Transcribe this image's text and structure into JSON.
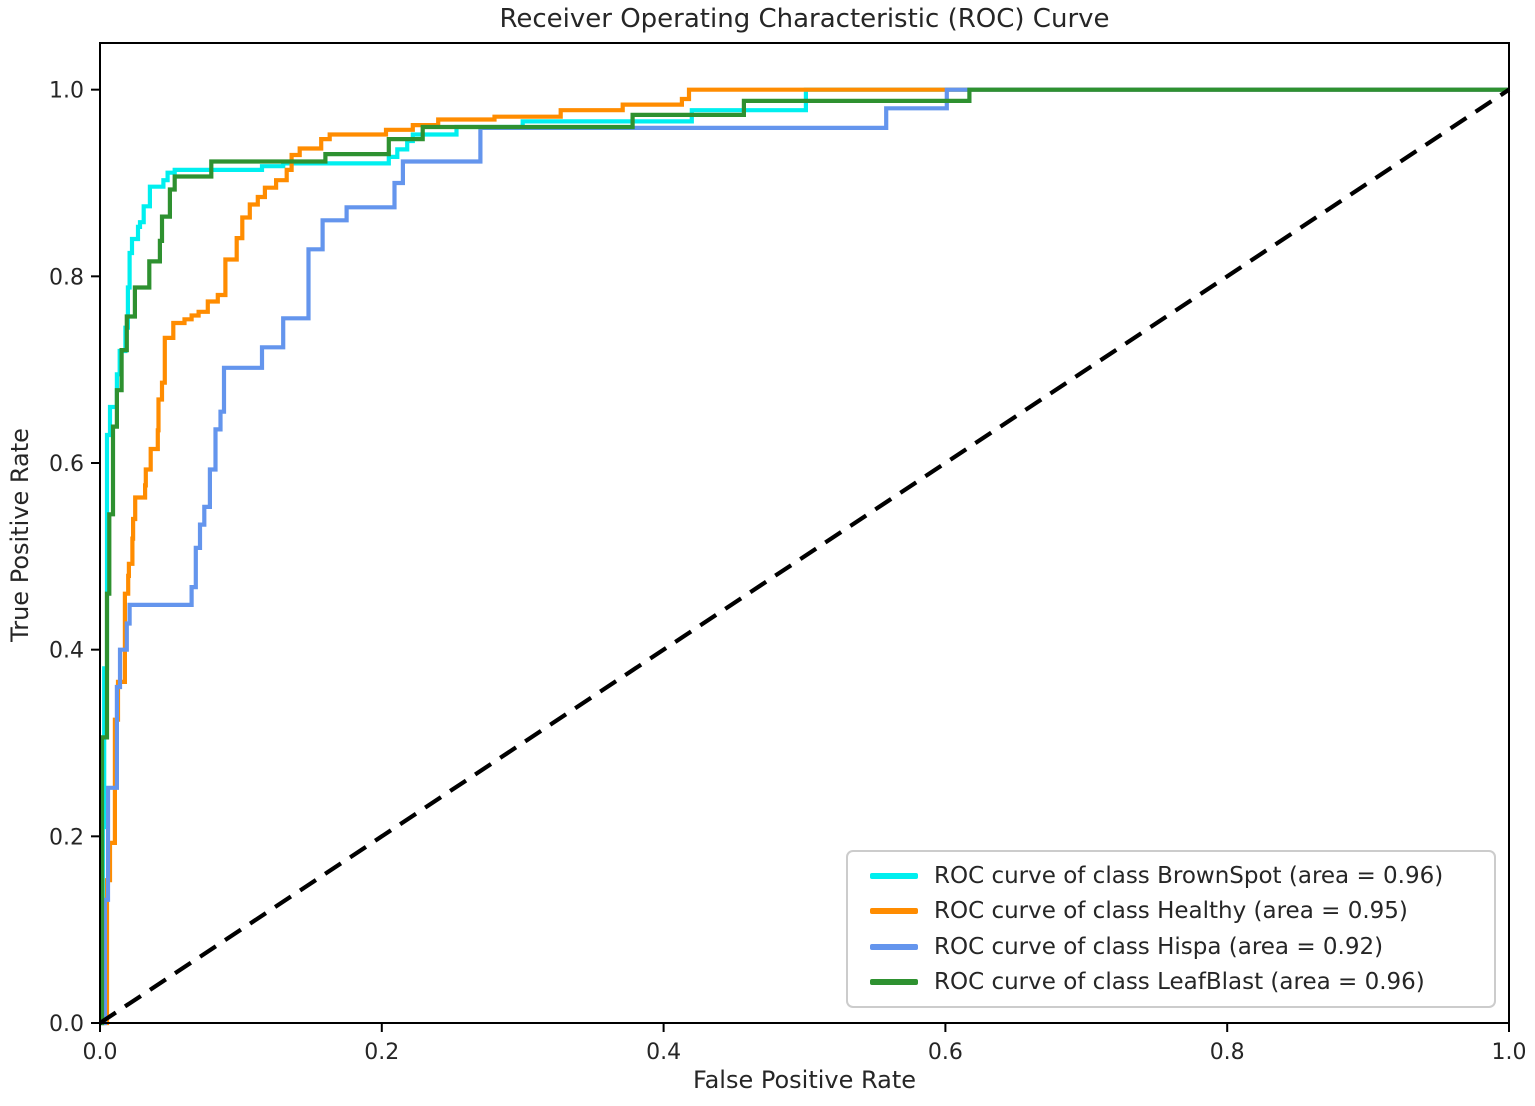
{
  "chart_data": {
    "type": "line",
    "subtype": "roc-step-curves",
    "title": "Receiver Operating Characteristic (ROC) Curve",
    "xlabel": "False Positive Rate",
    "ylabel": "True Positive Rate",
    "xlim": [
      0.0,
      1.0
    ],
    "ylim": [
      0.0,
      1.05
    ],
    "grid": false,
    "legend_position": "lower right",
    "x_ticks": [
      0.0,
      0.2,
      0.4,
      0.6,
      0.8,
      1.0
    ],
    "y_ticks": [
      0.0,
      0.2,
      0.4,
      0.6,
      0.8,
      1.0
    ],
    "x_tick_labels": [
      "0.0",
      "0.2",
      "0.4",
      "0.6",
      "0.8",
      "1.0"
    ],
    "y_tick_labels": [
      "0.0",
      "0.2",
      "0.4",
      "0.6",
      "0.8",
      "1.0"
    ],
    "series": [
      {
        "name": "BrownSpot",
        "auc": 0.96,
        "color": "#00EFEF",
        "points": [
          [
            0,
            0
          ],
          [
            0.002,
            0
          ],
          [
            0.002,
            0.21
          ],
          [
            0.003,
            0.21
          ],
          [
            0.003,
            0.38
          ],
          [
            0.005,
            0.38
          ],
          [
            0.005,
            0.63
          ],
          [
            0.0071,
            0.63
          ],
          [
            0.0071,
            0.66
          ],
          [
            0.012,
            0.66
          ],
          [
            0.012,
            0.695
          ],
          [
            0.014,
            0.695
          ],
          [
            0.014,
            0.72
          ],
          [
            0.018,
            0.72
          ],
          [
            0.018,
            0.745
          ],
          [
            0.0198,
            0.745
          ],
          [
            0.0198,
            0.788
          ],
          [
            0.021,
            0.788
          ],
          [
            0.021,
            0.825
          ],
          [
            0.0227,
            0.825
          ],
          [
            0.0227,
            0.84
          ],
          [
            0.027,
            0.84
          ],
          [
            0.027,
            0.853
          ],
          [
            0.0284,
            0.853
          ],
          [
            0.0284,
            0.858
          ],
          [
            0.031,
            0.858
          ],
          [
            0.031,
            0.875
          ],
          [
            0.0354,
            0.875
          ],
          [
            0.0354,
            0.896
          ],
          [
            0.045,
            0.896
          ],
          [
            0.045,
            0.903
          ],
          [
            0.048,
            0.903
          ],
          [
            0.048,
            0.911
          ],
          [
            0.053,
            0.911
          ],
          [
            0.053,
            0.914
          ],
          [
            0.115,
            0.914
          ],
          [
            0.115,
            0.918
          ],
          [
            0.13,
            0.918
          ],
          [
            0.13,
            0.921
          ],
          [
            0.205,
            0.921
          ],
          [
            0.205,
            0.928
          ],
          [
            0.211,
            0.928
          ],
          [
            0.211,
            0.936
          ],
          [
            0.218,
            0.936
          ],
          [
            0.218,
            0.945
          ],
          [
            0.222,
            0.945
          ],
          [
            0.222,
            0.952
          ],
          [
            0.253,
            0.952
          ],
          [
            0.253,
            0.96
          ],
          [
            0.3,
            0.96
          ],
          [
            0.3,
            0.966
          ],
          [
            0.42,
            0.966
          ],
          [
            0.42,
            0.978
          ],
          [
            0.501,
            0.978
          ],
          [
            0.501,
            1.0
          ],
          [
            1,
            1
          ]
        ]
      },
      {
        "name": "Healthy",
        "auc": 0.95,
        "color": "#FF8C00",
        "points": [
          [
            0,
            0
          ],
          [
            0.005,
            0
          ],
          [
            0.005,
            0.153
          ],
          [
            0.0071,
            0.153
          ],
          [
            0.0071,
            0.193
          ],
          [
            0.0106,
            0.193
          ],
          [
            0.0106,
            0.325
          ],
          [
            0.0128,
            0.325
          ],
          [
            0.0128,
            0.3655
          ],
          [
            0.0177,
            0.3655
          ],
          [
            0.0177,
            0.46
          ],
          [
            0.02,
            0.46
          ],
          [
            0.02,
            0.479
          ],
          [
            0.0205,
            0.479
          ],
          [
            0.0205,
            0.492
          ],
          [
            0.023,
            0.492
          ],
          [
            0.023,
            0.519
          ],
          [
            0.0235,
            0.519
          ],
          [
            0.0235,
            0.54
          ],
          [
            0.025,
            0.54
          ],
          [
            0.025,
            0.563
          ],
          [
            0.032,
            0.563
          ],
          [
            0.032,
            0.576
          ],
          [
            0.0325,
            0.576
          ],
          [
            0.0325,
            0.593
          ],
          [
            0.036,
            0.593
          ],
          [
            0.036,
            0.615
          ],
          [
            0.041,
            0.615
          ],
          [
            0.041,
            0.635
          ],
          [
            0.0415,
            0.635
          ],
          [
            0.0415,
            0.668
          ],
          [
            0.044,
            0.668
          ],
          [
            0.044,
            0.686
          ],
          [
            0.046,
            0.686
          ],
          [
            0.046,
            0.734
          ],
          [
            0.052,
            0.734
          ],
          [
            0.052,
            0.75
          ],
          [
            0.06,
            0.75
          ],
          [
            0.06,
            0.754
          ],
          [
            0.065,
            0.754
          ],
          [
            0.065,
            0.758
          ],
          [
            0.07,
            0.758
          ],
          [
            0.07,
            0.762
          ],
          [
            0.0765,
            0.762
          ],
          [
            0.0765,
            0.773
          ],
          [
            0.0836,
            0.773
          ],
          [
            0.0836,
            0.78
          ],
          [
            0.089,
            0.78
          ],
          [
            0.089,
            0.818
          ],
          [
            0.097,
            0.818
          ],
          [
            0.097,
            0.841
          ],
          [
            0.101,
            0.841
          ],
          [
            0.101,
            0.863
          ],
          [
            0.1063,
            0.863
          ],
          [
            0.1063,
            0.877
          ],
          [
            0.112,
            0.877
          ],
          [
            0.112,
            0.885
          ],
          [
            0.117,
            0.885
          ],
          [
            0.117,
            0.895
          ],
          [
            0.125,
            0.895
          ],
          [
            0.125,
            0.903
          ],
          [
            0.1325,
            0.903
          ],
          [
            0.1325,
            0.914
          ],
          [
            0.136,
            0.914
          ],
          [
            0.136,
            0.93
          ],
          [
            0.1417,
            0.93
          ],
          [
            0.1417,
            0.937
          ],
          [
            0.157,
            0.937
          ],
          [
            0.157,
            0.947
          ],
          [
            0.163,
            0.947
          ],
          [
            0.163,
            0.952
          ],
          [
            0.203,
            0.952
          ],
          [
            0.203,
            0.957
          ],
          [
            0.222,
            0.957
          ],
          [
            0.222,
            0.962
          ],
          [
            0.24,
            0.962
          ],
          [
            0.24,
            0.968
          ],
          [
            0.28,
            0.968
          ],
          [
            0.28,
            0.971
          ],
          [
            0.327,
            0.971
          ],
          [
            0.327,
            0.978
          ],
          [
            0.371,
            0.978
          ],
          [
            0.371,
            0.984
          ],
          [
            0.413,
            0.984
          ],
          [
            0.413,
            0.99
          ],
          [
            0.418,
            0.99
          ],
          [
            0.418,
            1.0
          ],
          [
            1,
            1
          ]
        ]
      },
      {
        "name": "Hispa",
        "auc": 0.92,
        "color": "#6495ED",
        "points": [
          [
            0,
            0
          ],
          [
            0.0035,
            0
          ],
          [
            0.0035,
            0.132
          ],
          [
            0.0057,
            0.132
          ],
          [
            0.0057,
            0.252
          ],
          [
            0.012,
            0.252
          ],
          [
            0.012,
            0.36
          ],
          [
            0.0142,
            0.36
          ],
          [
            0.0142,
            0.4
          ],
          [
            0.019,
            0.4
          ],
          [
            0.019,
            0.428
          ],
          [
            0.021,
            0.428
          ],
          [
            0.021,
            0.448
          ],
          [
            0.065,
            0.448
          ],
          [
            0.065,
            0.467
          ],
          [
            0.068,
            0.467
          ],
          [
            0.068,
            0.509
          ],
          [
            0.071,
            0.509
          ],
          [
            0.071,
            0.534
          ],
          [
            0.074,
            0.534
          ],
          [
            0.074,
            0.553
          ],
          [
            0.078,
            0.553
          ],
          [
            0.078,
            0.593
          ],
          [
            0.082,
            0.593
          ],
          [
            0.082,
            0.636
          ],
          [
            0.0855,
            0.636
          ],
          [
            0.0855,
            0.655
          ],
          [
            0.088,
            0.655
          ],
          [
            0.088,
            0.702
          ],
          [
            0.115,
            0.702
          ],
          [
            0.115,
            0.724
          ],
          [
            0.13,
            0.724
          ],
          [
            0.13,
            0.755
          ],
          [
            0.148,
            0.755
          ],
          [
            0.148,
            0.829
          ],
          [
            0.158,
            0.829
          ],
          [
            0.158,
            0.86
          ],
          [
            0.175,
            0.86
          ],
          [
            0.175,
            0.874
          ],
          [
            0.209,
            0.874
          ],
          [
            0.209,
            0.9
          ],
          [
            0.215,
            0.9
          ],
          [
            0.215,
            0.923
          ],
          [
            0.27,
            0.923
          ],
          [
            0.27,
            0.959
          ],
          [
            0.558,
            0.959
          ],
          [
            0.558,
            0.98
          ],
          [
            0.601,
            0.98
          ],
          [
            0.601,
            1.0
          ],
          [
            1,
            1
          ]
        ]
      },
      {
        "name": "LeafBlast",
        "auc": 0.96,
        "color": "#2E9130",
        "points": [
          [
            0,
            0
          ],
          [
            0.0014,
            0
          ],
          [
            0.0014,
            0.306
          ],
          [
            0.005,
            0.306
          ],
          [
            0.005,
            0.46
          ],
          [
            0.0066,
            0.46
          ],
          [
            0.0066,
            0.545
          ],
          [
            0.0092,
            0.545
          ],
          [
            0.0092,
            0.639
          ],
          [
            0.012,
            0.639
          ],
          [
            0.012,
            0.678
          ],
          [
            0.0153,
            0.678
          ],
          [
            0.0153,
            0.721
          ],
          [
            0.019,
            0.721
          ],
          [
            0.019,
            0.757
          ],
          [
            0.0248,
            0.757
          ],
          [
            0.0248,
            0.788
          ],
          [
            0.035,
            0.788
          ],
          [
            0.035,
            0.816
          ],
          [
            0.0425,
            0.816
          ],
          [
            0.0425,
            0.838
          ],
          [
            0.044,
            0.838
          ],
          [
            0.044,
            0.864
          ],
          [
            0.0496,
            0.864
          ],
          [
            0.0496,
            0.893
          ],
          [
            0.053,
            0.893
          ],
          [
            0.053,
            0.907
          ],
          [
            0.079,
            0.907
          ],
          [
            0.079,
            0.923
          ],
          [
            0.16,
            0.923
          ],
          [
            0.16,
            0.931
          ],
          [
            0.205,
            0.931
          ],
          [
            0.205,
            0.947
          ],
          [
            0.229,
            0.947
          ],
          [
            0.229,
            0.96
          ],
          [
            0.378,
            0.96
          ],
          [
            0.378,
            0.973
          ],
          [
            0.457,
            0.973
          ],
          [
            0.457,
            0.988
          ],
          [
            0.617,
            0.988
          ],
          [
            0.617,
            1.0
          ],
          [
            1,
            1
          ]
        ]
      }
    ],
    "diagonal": {
      "name": "chance-line",
      "points": [
        [
          0,
          0
        ],
        [
          1,
          1
        ]
      ],
      "color": "#000000",
      "style": "dashed"
    }
  },
  "legend": {
    "items": [
      {
        "label": "ROC curve of class BrownSpot (area = 0.96)",
        "color": "#00EFEF"
      },
      {
        "label": "ROC curve of class Healthy (area = 0.95)",
        "color": "#FF8C00"
      },
      {
        "label": "ROC curve of class Hispa (area = 0.92)",
        "color": "#6495ED"
      },
      {
        "label": "ROC curve of class LeafBlast (area = 0.96)",
        "color": "#2E9130"
      }
    ]
  }
}
